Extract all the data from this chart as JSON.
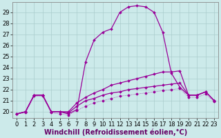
{
  "xlabel": "Windchill (Refroidissement éolien,°C)",
  "bg_color": "#cceaea",
  "line_color": "#990099",
  "grid_color": "#aacccc",
  "xmin": -0.5,
  "xmax": 23.5,
  "ymin": 19.4,
  "ymax": 29.9,
  "yticks": [
    20,
    21,
    22,
    23,
    24,
    25,
    26,
    27,
    28,
    29
  ],
  "xticks": [
    0,
    1,
    2,
    3,
    4,
    5,
    6,
    7,
    8,
    9,
    10,
    11,
    12,
    13,
    14,
    15,
    16,
    17,
    18,
    19,
    20,
    21,
    22,
    23
  ],
  "s1_x": [
    0,
    1,
    2,
    3,
    4,
    5,
    6,
    7,
    8,
    9,
    10,
    11,
    12,
    13,
    14,
    15,
    16,
    17,
    18,
    19,
    20,
    21,
    22,
    23
  ],
  "s1_y": [
    19.8,
    20.0,
    21.5,
    21.5,
    20.0,
    20.0,
    19.8,
    20.2,
    24.5,
    26.5,
    27.2,
    27.5,
    29.0,
    29.5,
    29.6,
    29.5,
    29.0,
    27.2,
    23.5,
    22.2,
    21.5,
    21.5,
    21.8,
    21.0
  ],
  "s2_x": [
    0,
    1,
    2,
    3,
    4,
    5,
    6,
    7,
    8,
    9,
    10,
    11,
    12,
    13,
    14,
    15,
    16,
    17,
    18,
    19,
    20,
    21,
    22,
    23
  ],
  "s2_y": [
    19.8,
    20.0,
    21.5,
    21.5,
    20.0,
    20.0,
    20.0,
    20.8,
    21.3,
    21.7,
    22.0,
    22.4,
    22.6,
    22.8,
    23.0,
    23.2,
    23.4,
    23.6,
    23.6,
    23.7,
    21.5,
    21.5,
    21.8,
    21.0
  ],
  "s3_x": [
    0,
    1,
    2,
    3,
    4,
    5,
    6,
    7,
    8,
    9,
    10,
    11,
    12,
    13,
    14,
    15,
    16,
    17,
    18,
    19,
    20,
    21,
    22,
    23
  ],
  "s3_y": [
    19.8,
    20.0,
    21.5,
    21.5,
    20.0,
    20.0,
    19.9,
    20.5,
    21.0,
    21.2,
    21.5,
    21.7,
    21.8,
    22.0,
    22.1,
    22.2,
    22.3,
    22.4,
    22.5,
    22.6,
    21.5,
    21.5,
    21.8,
    21.0
  ],
  "s4_x": [
    0,
    1,
    2,
    3,
    4,
    5,
    6,
    7,
    8,
    9,
    10,
    11,
    12,
    13,
    14,
    15,
    16,
    17,
    18,
    19,
    20,
    21,
    22,
    23
  ],
  "s4_y": [
    19.8,
    19.9,
    21.4,
    21.4,
    19.9,
    19.8,
    19.7,
    20.1,
    20.5,
    20.8,
    21.0,
    21.2,
    21.4,
    21.5,
    21.6,
    21.7,
    21.8,
    21.9,
    22.0,
    22.1,
    21.3,
    21.3,
    21.6,
    20.9
  ],
  "tick_fontsize": 6,
  "label_fontsize": 7
}
